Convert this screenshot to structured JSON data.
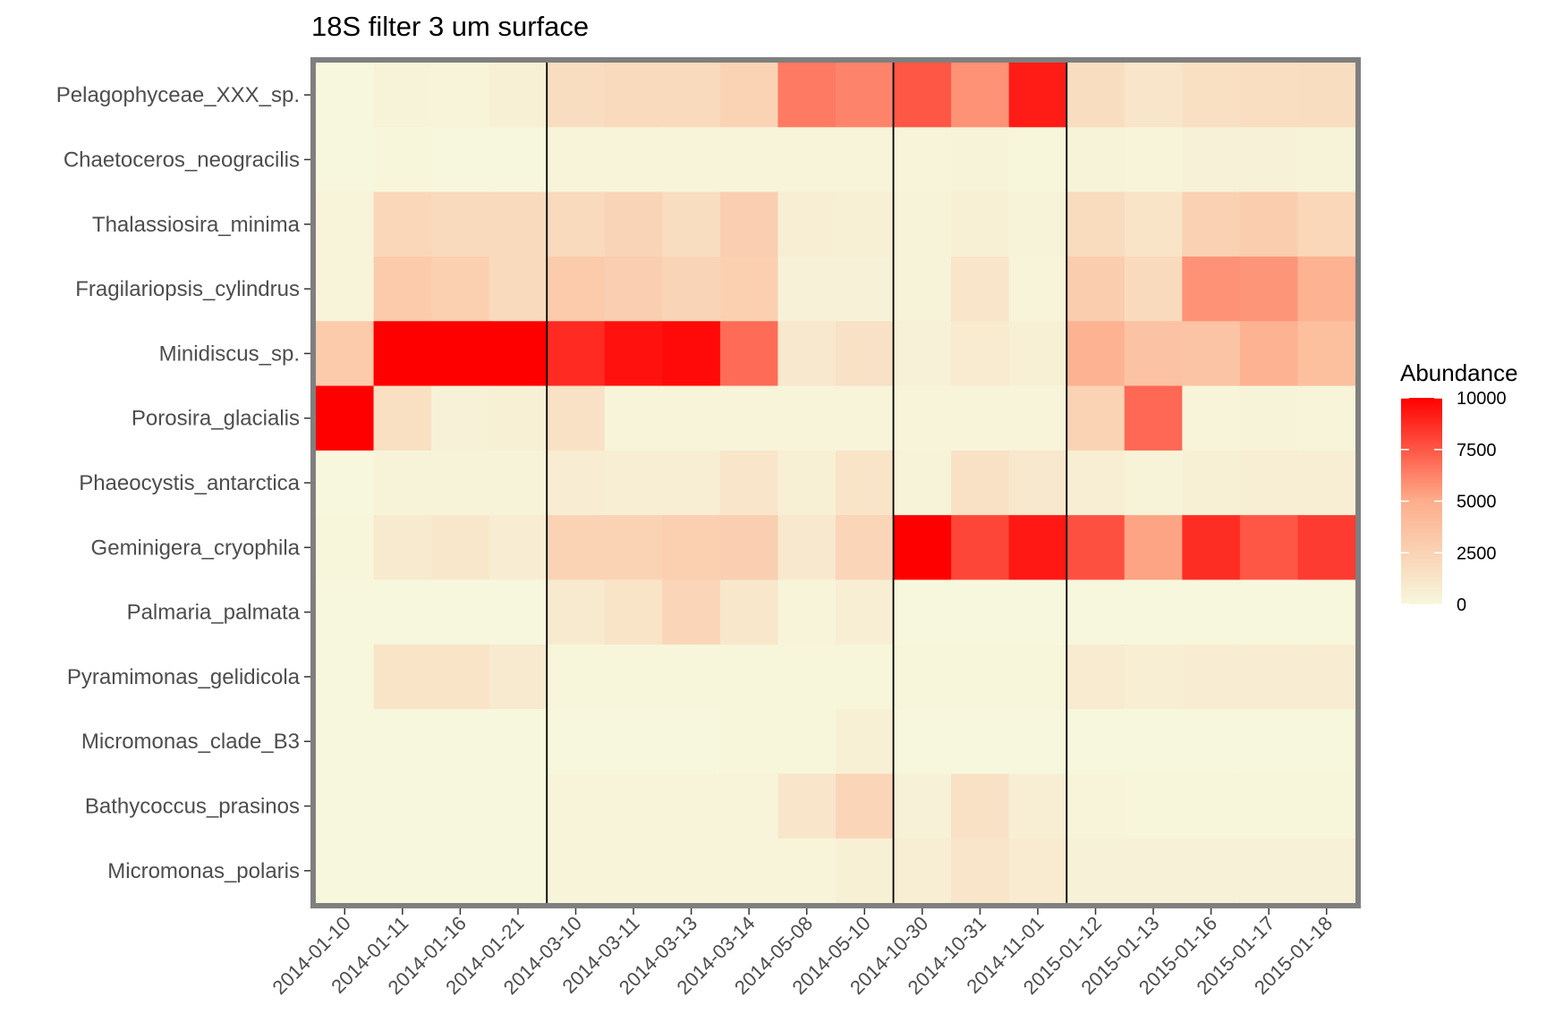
{
  "chart_data": {
    "type": "heatmap",
    "title": "18S filter 3 um surface",
    "xlabel": "",
    "ylabel": "",
    "x": [
      "2014-01-10",
      "2014-01-11",
      "2014-01-16",
      "2014-01-21",
      "2014-03-10",
      "2014-03-11",
      "2014-03-13",
      "2014-03-14",
      "2014-05-08",
      "2014-05-10",
      "2014-10-30",
      "2014-10-31",
      "2014-11-01",
      "2015-01-12",
      "2015-01-13",
      "2015-01-16",
      "2015-01-17",
      "2015-01-18"
    ],
    "y": [
      "Pelagophyceae_XXX_sp.",
      "Chaetoceros_neogracilis",
      "Thalassiosira_minima",
      "Fragilariopsis_cylindrus",
      "Minidiscus_sp.",
      "Porosira_glacialis",
      "Phaeocystis_antarctica",
      "Geminigera_cryophila",
      "Palmaria_palmata",
      "Pyramimonas_gelidicola",
      "Micromonas_clade_B3",
      "Bathycoccus_prasinos",
      "Micromonas_polaris"
    ],
    "values": [
      [
        0,
        300,
        200,
        500,
        1800,
        2000,
        2000,
        2500,
        6500,
        6200,
        7500,
        5800,
        9200,
        1800,
        1200,
        1600,
        1700,
        1800
      ],
      [
        0,
        100,
        0,
        0,
        200,
        200,
        200,
        200,
        200,
        200,
        200,
        300,
        100,
        300,
        200,
        400,
        400,
        300
      ],
      [
        200,
        2200,
        2000,
        2000,
        2000,
        2400,
        1800,
        2800,
        600,
        500,
        300,
        500,
        300,
        1900,
        1300,
        2600,
        2900,
        2200
      ],
      [
        200,
        3000,
        2700,
        2000,
        3000,
        2800,
        2400,
        2700,
        400,
        400,
        300,
        1200,
        200,
        2900,
        2000,
        5800,
        5700,
        4700
      ],
      [
        3000,
        10000,
        10000,
        10000,
        8800,
        9500,
        9700,
        6900,
        1000,
        1500,
        400,
        800,
        500,
        4700,
        3600,
        3500,
        4700,
        3800
      ],
      [
        10000,
        1600,
        400,
        500,
        1500,
        200,
        200,
        200,
        200,
        200,
        200,
        200,
        200,
        2500,
        7000,
        200,
        300,
        200
      ],
      [
        0,
        300,
        300,
        300,
        700,
        600,
        600,
        1200,
        500,
        1300,
        300,
        1500,
        1000,
        600,
        300,
        500,
        600,
        600
      ],
      [
        100,
        900,
        1100,
        700,
        2500,
        2500,
        2700,
        2800,
        1000,
        2300,
        10000,
        8000,
        9300,
        7700,
        5300,
        8700,
        7500,
        8300
      ],
      [
        0,
        0,
        0,
        0,
        900,
        1300,
        2300,
        1100,
        200,
        600,
        0,
        0,
        0,
        0,
        0,
        0,
        0,
        0
      ],
      [
        0,
        1300,
        1300,
        900,
        100,
        100,
        100,
        100,
        100,
        100,
        100,
        100,
        100,
        800,
        600,
        700,
        700,
        700
      ],
      [
        0,
        0,
        0,
        0,
        0,
        0,
        0,
        100,
        100,
        500,
        0,
        0,
        0,
        0,
        0,
        0,
        0,
        0
      ],
      [
        0,
        0,
        0,
        0,
        200,
        200,
        200,
        200,
        1200,
        2300,
        400,
        1500,
        600,
        200,
        100,
        100,
        100,
        100
      ],
      [
        0,
        0,
        0,
        0,
        200,
        200,
        200,
        200,
        200,
        500,
        600,
        1200,
        800,
        400,
        400,
        400,
        400,
        400
      ]
    ],
    "separators_after": [
      "2014-01-21",
      "2014-05-10",
      "2014-11-01"
    ],
    "color_scale": {
      "low": "#f7f7dd",
      "mid": "#fdae8c",
      "high": "#ff0000",
      "min": 0,
      "max": 10000
    },
    "legend": {
      "title": "Abundance",
      "ticks": [
        10000,
        7500,
        5000,
        2500,
        0
      ],
      "position": "right"
    },
    "panel_border_color": "#7f7f7f"
  }
}
